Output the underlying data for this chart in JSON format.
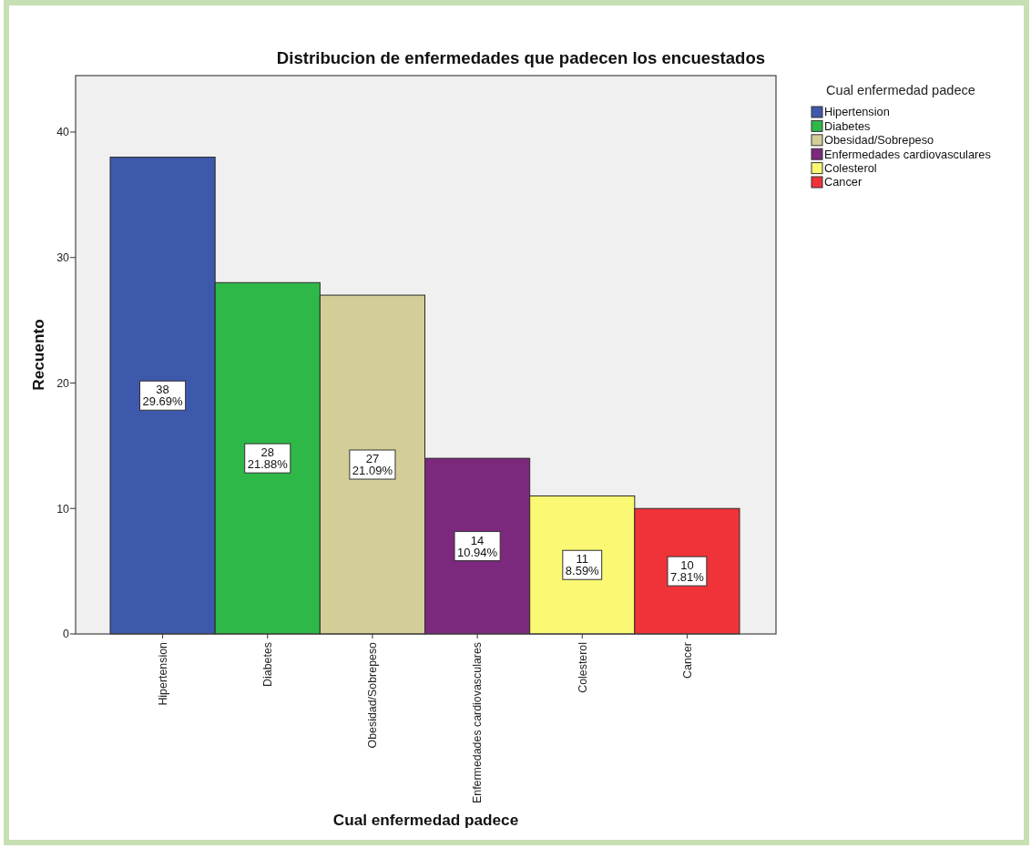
{
  "chart_data": {
    "type": "bar",
    "title": "Distribucion de enfermedades que padecen los encuestados",
    "xlabel": "Cual enfermedad padece",
    "ylabel": "Recuento",
    "legend_title": "Cual enfermedad padece",
    "categories": [
      "Hipertension",
      "Diabetes",
      "Obesidad/Sobrepeso",
      "Enfermedades cardiovasculares",
      "Colesterol",
      "Cancer"
    ],
    "stacked": true,
    "series": [
      {
        "name": "Hipertension",
        "color": "#3e58ac",
        "values": [
          38,
          null,
          null,
          null,
          null,
          null
        ],
        "value_labels": [
          "38\n29.69%",
          null,
          null,
          null,
          null,
          null
        ]
      },
      {
        "name": "Diabetes",
        "color": "#2eb848",
        "values": [
          null,
          28,
          null,
          null,
          null,
          null
        ],
        "value_labels": [
          null,
          "28\n21.88%",
          null,
          null,
          null,
          null
        ]
      },
      {
        "name": "Obesidad/Sobrepeso",
        "color": "#d3ce97",
        "values": [
          null,
          null,
          27,
          null,
          null,
          null
        ],
        "value_labels": [
          null,
          null,
          "27\n21.09%",
          null,
          null,
          null
        ]
      },
      {
        "name": "Enfermedades cardiovasculares",
        "color": "#7b287d",
        "values": [
          null,
          null,
          null,
          14,
          null,
          null
        ],
        "value_labels": [
          null,
          null,
          null,
          "14\n10.94%",
          null,
          null
        ]
      },
      {
        "name": "Colesterol",
        "color": "#fbf873",
        "values": [
          null,
          null,
          null,
          null,
          11,
          null
        ],
        "value_labels": [
          null,
          null,
          null,
          null,
          "11\n8.59%",
          null
        ]
      },
      {
        "name": "Cancer",
        "color": "#ef3338",
        "values": [
          null,
          null,
          null,
          null,
          null,
          10
        ],
        "value_labels": [
          null,
          null,
          null,
          null,
          null,
          "10\n7.81%"
        ]
      }
    ],
    "ylim": [
      0,
      44.5
    ],
    "yticks": [
      0,
      10,
      20,
      30,
      40
    ],
    "legend": "right"
  }
}
